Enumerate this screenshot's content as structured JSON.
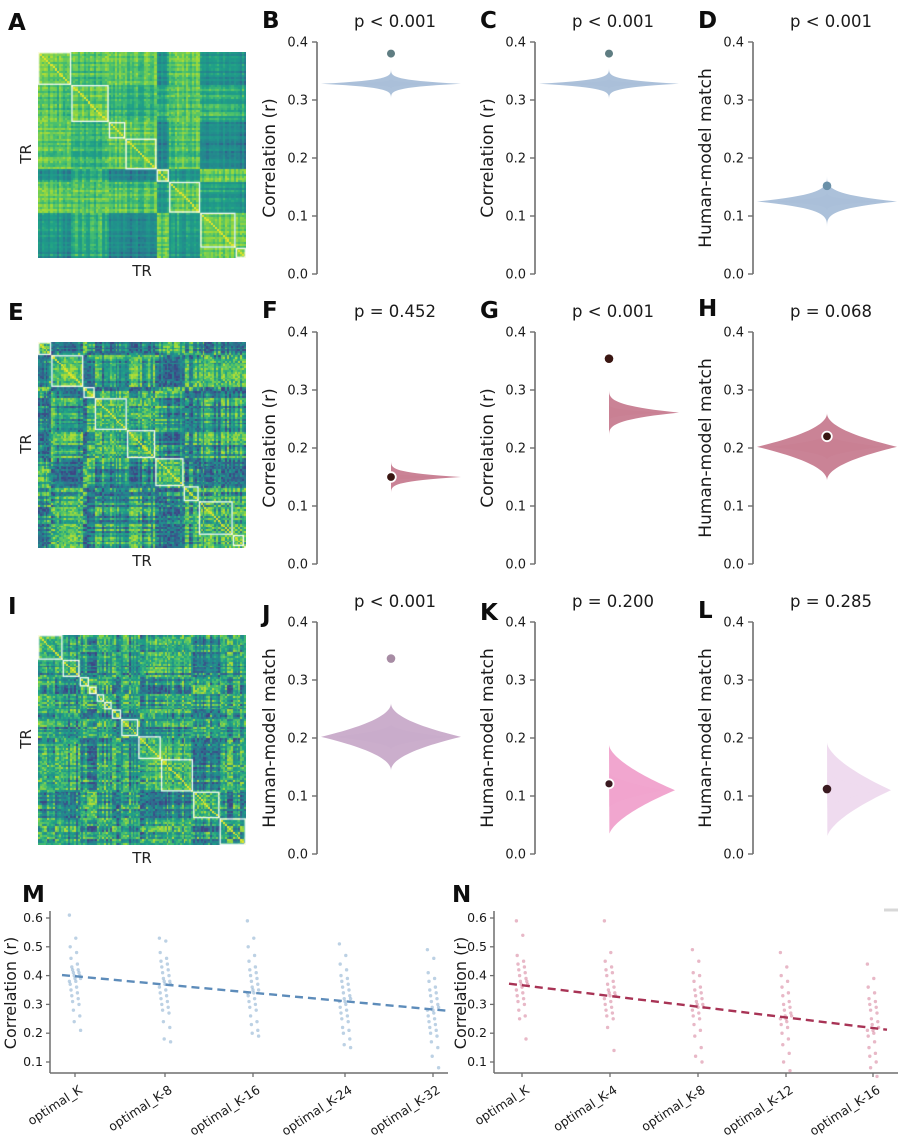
{
  "figure_title": "Event segmentation model comparison figure",
  "colors": {
    "blue_violin": "#a9bed8",
    "blue_dot": "#5f7d82",
    "blue_dot_d": "#6a90a8",
    "rose_violin": "#c87e92",
    "mauve_violin": "#c9abca",
    "pink_violin": "#f0a2cd",
    "pale_violin": "#eedaee",
    "dark_dot": "#3a1612",
    "mauve_dot": "#a78ca4",
    "blue_points": "#7aa3c9",
    "blue_trend": "#5d8cba",
    "red_points": "#d2728f",
    "red_trend": "#a83355",
    "spine": "#6e6e6e"
  },
  "panels": {
    "A": {
      "letter": "A",
      "xlabel": "TR",
      "ylabel": "TR"
    },
    "B": {
      "letter": "B"
    },
    "C": {
      "letter": "C"
    },
    "D": {
      "letter": "D"
    },
    "E": {
      "letter": "E",
      "xlabel": "TR",
      "ylabel": "TR"
    },
    "F": {
      "letter": "F"
    },
    "G": {
      "letter": "G"
    },
    "H": {
      "letter": "H"
    },
    "I": {
      "letter": "I",
      "xlabel": "TR",
      "ylabel": "TR"
    },
    "J": {
      "letter": "J"
    },
    "K": {
      "letter": "K"
    },
    "L": {
      "letter": "L"
    },
    "M": {
      "letter": "M"
    },
    "N": {
      "letter": "N"
    }
  },
  "chart_data": [
    {
      "id": "A",
      "type": "heatmap",
      "xlabel": "TR",
      "ylabel": "TR",
      "colormap": "viridis",
      "overlay": "white diagonal event-boundary boxes",
      "n": 100,
      "seed": 5,
      "jitter": 0.25,
      "noise": 0.1,
      "block_min": 5,
      "block_max": 22
    },
    {
      "id": "E",
      "type": "heatmap",
      "xlabel": "TR",
      "ylabel": "TR",
      "colormap": "viridis",
      "overlay": "white diagonal event-boundary boxes",
      "n": 110,
      "seed": 9,
      "jitter": 0.8,
      "noise": 0.3,
      "block_min": 4,
      "block_max": 20
    },
    {
      "id": "I",
      "type": "heatmap",
      "xlabel": "TR",
      "ylabel": "TR",
      "colormap": "viridis",
      "overlay": "white diagonal event-boundary boxes",
      "n": 110,
      "seed": 13,
      "jitter": 0.85,
      "noise": 0.3,
      "block_min": 4,
      "block_max": 20
    },
    {
      "id": "B",
      "type": "violin",
      "title": "p < 0.001",
      "ylabel": "Correlation (r)",
      "ylim": [
        0.0,
        0.4
      ],
      "yticks": [
        0.0,
        0.1,
        0.2,
        0.3,
        0.4
      ],
      "violin": {
        "center": 0.328,
        "spread": 0.03,
        "sharpness": 5,
        "color": "#a9bed8",
        "half_width": 70
      },
      "dot": {
        "value": 0.38,
        "color": "#5f7d82",
        "ring": false,
        "r": 4.0
      }
    },
    {
      "id": "C",
      "type": "violin",
      "title": "p < 0.001",
      "ylabel": "Correlation (r)",
      "ylim": [
        0.0,
        0.4
      ],
      "yticks": [
        0.0,
        0.1,
        0.2,
        0.3,
        0.4
      ],
      "violin": {
        "center": 0.328,
        "spread": 0.032,
        "sharpness": 5,
        "color": "#a9bed8",
        "half_width": 70
      },
      "dot": {
        "value": 0.38,
        "color": "#5f7d82",
        "ring": false,
        "r": 4.0
      }
    },
    {
      "id": "D",
      "type": "violin",
      "title": "p < 0.001",
      "ylabel": "Human-model match",
      "ylim": [
        0.0,
        0.4
      ],
      "yticks": [
        0.0,
        0.1,
        0.2,
        0.3,
        0.4
      ],
      "violin": {
        "center": 0.125,
        "spread": 0.048,
        "sharpness": 4,
        "color": "#a9bed8",
        "half_width": 70
      },
      "dot": {
        "value": 0.152,
        "color": "#6a90a8",
        "ring": false,
        "r": 4.3
      }
    },
    {
      "id": "F",
      "type": "violin",
      "title": "p = 0.452",
      "ylabel": "Correlation (r)",
      "ylim": [
        0.0,
        0.4
      ],
      "yticks": [
        0.0,
        0.1,
        0.2,
        0.3,
        0.4
      ],
      "violin": {
        "center": 0.15,
        "spread": 0.032,
        "sharpness": 4.5,
        "color": "#c87e92",
        "half_width": 70
      },
      "dot": {
        "value": 0.15,
        "color": "#3a1612",
        "ring": true,
        "r": 4.8
      }
    },
    {
      "id": "G",
      "type": "violin",
      "title": "p < 0.001",
      "ylabel": "Correlation (r)",
      "ylim": [
        0.0,
        0.4
      ],
      "yticks": [
        0.0,
        0.1,
        0.2,
        0.3,
        0.4
      ],
      "violin": {
        "center": 0.261,
        "spread": 0.042,
        "sharpness": 3.5,
        "color": "#c87e92",
        "half_width": 70
      },
      "dot": {
        "value": 0.354,
        "color": "#3a1612",
        "ring": false,
        "r": 4.3
      }
    },
    {
      "id": "H",
      "type": "violin",
      "title": "p = 0.068",
      "ylabel": "Human-model match",
      "ylim": [
        0.0,
        0.4
      ],
      "yticks": [
        0.0,
        0.1,
        0.2,
        0.3,
        0.4
      ],
      "violin": {
        "center": 0.202,
        "spread": 0.058,
        "sharpness": 2.0,
        "color": "#c87e92",
        "half_width": 70
      },
      "dot": {
        "value": 0.22,
        "color": "#3a1612",
        "ring": true,
        "r": 4.8
      }
    },
    {
      "id": "J",
      "type": "violin",
      "title": "p < 0.001",
      "ylabel": "Human-model match",
      "ylim": [
        0.0,
        0.4
      ],
      "yticks": [
        0.0,
        0.1,
        0.2,
        0.3,
        0.4
      ],
      "violin": {
        "center": 0.202,
        "spread": 0.058,
        "sharpness": 2.0,
        "color": "#c9abca",
        "half_width": 70
      },
      "dot": {
        "value": 0.337,
        "color": "#a78ca4",
        "ring": false,
        "r": 4.3
      }
    },
    {
      "id": "K",
      "type": "violin",
      "title": "p = 0.200",
      "ylabel": "Human-model match",
      "ylim": [
        0.0,
        0.4
      ],
      "yticks": [
        0.0,
        0.1,
        0.2,
        0.3,
        0.4
      ],
      "violin": {
        "center": 0.11,
        "spread": 0.078,
        "sharpness": 1.6,
        "color": "#f0a2cd",
        "half_width": 66
      },
      "dot": {
        "value": 0.121,
        "color": "#3a1a20",
        "ring": true,
        "r": 4.5
      }
    },
    {
      "id": "L",
      "type": "violin",
      "title": "p = 0.285",
      "ylabel": "Human-model match",
      "ylim": [
        0.0,
        0.4
      ],
      "yticks": [
        0.0,
        0.1,
        0.2,
        0.3,
        0.4
      ],
      "violin": {
        "center": 0.11,
        "spread": 0.082,
        "sharpness": 1.6,
        "color": "#eedaee",
        "half_width": 64
      },
      "dot": {
        "value": 0.112,
        "color": "#3a1a20",
        "ring": false,
        "r": 4.3
      }
    },
    {
      "id": "M",
      "type": "strip-scatter",
      "ylabel": "Correlation (r)",
      "ylim": [
        0.05,
        0.63
      ],
      "yticks": [
        0.1,
        0.2,
        0.3,
        0.4,
        0.5,
        0.6
      ],
      "categories": [
        "optimal_K",
        "optimal_K-8",
        "optimal_K-16",
        "optimal_K-24",
        "optimal_K-32"
      ],
      "cat_x": [
        75,
        165,
        253,
        345,
        433
      ],
      "axis_x": 50,
      "point_color": "#7aa3c9",
      "trend": {
        "start": 0.402,
        "end": 0.278,
        "color": "#5d8cba",
        "style": "dashed"
      },
      "points": [
        [
          0.61,
          0.53,
          0.5,
          0.48,
          0.46,
          0.44,
          0.43,
          0.42,
          0.42,
          0.41,
          0.41,
          0.4,
          0.4,
          0.39,
          0.39,
          0.38,
          0.38,
          0.37,
          0.36,
          0.35,
          0.34,
          0.33,
          0.32,
          0.31,
          0.3,
          0.28,
          0.26,
          0.24,
          0.21
        ],
        [
          0.53,
          0.52,
          0.48,
          0.46,
          0.45,
          0.44,
          0.43,
          0.42,
          0.41,
          0.4,
          0.39,
          0.38,
          0.38,
          0.37,
          0.37,
          0.36,
          0.35,
          0.34,
          0.33,
          0.32,
          0.31,
          0.3,
          0.29,
          0.28,
          0.27,
          0.24,
          0.22,
          0.18,
          0.17
        ],
        [
          0.59,
          0.53,
          0.5,
          0.47,
          0.45,
          0.43,
          0.42,
          0.41,
          0.4,
          0.39,
          0.38,
          0.37,
          0.36,
          0.35,
          0.35,
          0.34,
          0.34,
          0.33,
          0.32,
          0.31,
          0.3,
          0.29,
          0.28,
          0.26,
          0.24,
          0.23,
          0.21,
          0.2,
          0.19
        ],
        [
          0.51,
          0.47,
          0.44,
          0.42,
          0.4,
          0.39,
          0.38,
          0.37,
          0.36,
          0.35,
          0.34,
          0.33,
          0.32,
          0.32,
          0.31,
          0.31,
          0.3,
          0.29,
          0.28,
          0.27,
          0.26,
          0.25,
          0.24,
          0.22,
          0.21,
          0.2,
          0.18,
          0.16,
          0.15
        ],
        [
          0.49,
          0.46,
          0.41,
          0.39,
          0.38,
          0.36,
          0.35,
          0.34,
          0.33,
          0.32,
          0.31,
          0.3,
          0.29,
          0.29,
          0.28,
          0.28,
          0.27,
          0.26,
          0.25,
          0.24,
          0.23,
          0.22,
          0.21,
          0.2,
          0.19,
          0.17,
          0.15,
          0.12,
          0.08
        ]
      ]
    },
    {
      "id": "N",
      "type": "strip-scatter",
      "ylabel": "Correlation (r)",
      "ylim": [
        0.05,
        0.63
      ],
      "yticks": [
        0.1,
        0.2,
        0.3,
        0.4,
        0.5,
        0.6
      ],
      "categories": [
        "optimal_K",
        "optimal_K-4",
        "optimal_K-8",
        "optimal_K-12",
        "optimal_K-16"
      ],
      "cat_x": [
        72,
        160,
        248,
        336,
        423
      ],
      "axis_x": 44,
      "point_color": "#d2728f",
      "trend": {
        "start": 0.372,
        "end": 0.212,
        "color": "#a83355",
        "style": "dashed"
      },
      "points": [
        [
          0.59,
          0.54,
          0.47,
          0.45,
          0.44,
          0.43,
          0.42,
          0.41,
          0.4,
          0.39,
          0.38,
          0.38,
          0.37,
          0.37,
          0.36,
          0.35,
          0.34,
          0.33,
          0.32,
          0.31,
          0.3,
          0.28,
          0.26,
          0.25,
          0.18
        ],
        [
          0.59,
          0.48,
          0.45,
          0.43,
          0.42,
          0.41,
          0.4,
          0.38,
          0.37,
          0.36,
          0.35,
          0.34,
          0.34,
          0.33,
          0.33,
          0.32,
          0.31,
          0.3,
          0.29,
          0.28,
          0.27,
          0.26,
          0.25,
          0.22,
          0.14
        ],
        [
          0.49,
          0.45,
          0.41,
          0.4,
          0.38,
          0.36,
          0.35,
          0.34,
          0.33,
          0.32,
          0.31,
          0.3,
          0.3,
          0.29,
          0.29,
          0.28,
          0.27,
          0.26,
          0.25,
          0.23,
          0.21,
          0.19,
          0.15,
          0.12,
          0.1
        ],
        [
          0.48,
          0.43,
          0.4,
          0.38,
          0.36,
          0.34,
          0.33,
          0.31,
          0.3,
          0.29,
          0.28,
          0.27,
          0.26,
          0.26,
          0.25,
          0.25,
          0.24,
          0.23,
          0.22,
          0.2,
          0.18,
          0.16,
          0.13,
          0.1,
          0.07
        ],
        [
          0.44,
          0.39,
          0.36,
          0.34,
          0.32,
          0.31,
          0.3,
          0.29,
          0.28,
          0.27,
          0.25,
          0.24,
          0.23,
          0.22,
          0.21,
          0.21,
          0.2,
          0.19,
          0.17,
          0.15,
          0.13,
          0.12,
          0.1,
          0.08,
          0.05
        ]
      ]
    }
  ]
}
